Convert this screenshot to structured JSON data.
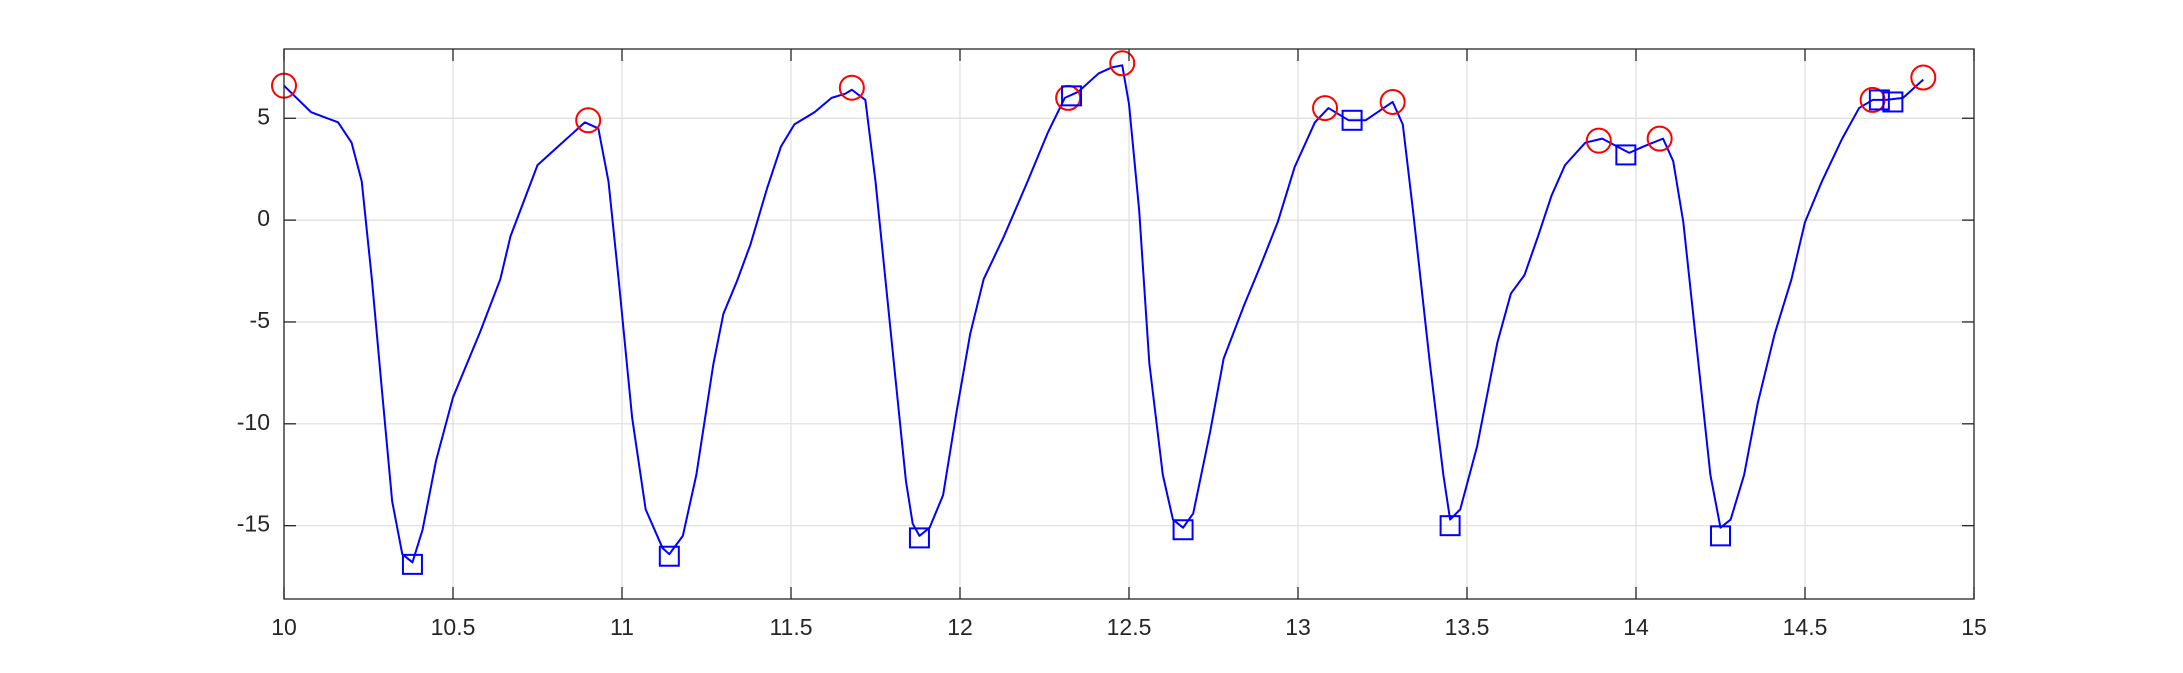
{
  "chart_data": {
    "type": "line",
    "xlim": [
      10,
      15
    ],
    "ylim": [
      -18.6,
      8.4
    ],
    "xticks": [
      10,
      10.5,
      11,
      11.5,
      12,
      12.5,
      13,
      13.5,
      14,
      14.5,
      15
    ],
    "yticks": [
      -15,
      -10,
      -5,
      0,
      5
    ],
    "grid": true,
    "series": [
      {
        "color": "#0000ff",
        "marker": "none",
        "x": [
          10,
          10.08,
          10.16,
          10.2,
          10.23,
          10.26,
          10.29,
          10.32,
          10.35,
          10.38,
          10.41,
          10.45,
          10.5,
          10.58,
          10.64,
          10.67,
          10.75,
          10.81,
          10.85,
          10.89,
          10.93,
          10.96,
          10.99,
          11.03,
          11.07,
          11.12,
          11.14,
          11.18,
          11.22,
          11.27,
          11.3,
          11.34,
          11.38,
          11.43,
          11.47,
          11.51,
          11.57,
          11.62,
          11.66,
          11.68,
          11.72,
          11.75,
          11.8,
          11.84,
          11.86,
          11.88,
          11.91,
          11.95,
          11.99,
          12.03,
          12.07,
          12.13,
          12.2,
          12.26,
          12.31,
          12.35,
          12.41,
          12.45,
          12.48,
          12.5,
          12.53,
          12.56,
          12.6,
          12.63,
          12.66,
          12.69,
          12.74,
          12.78,
          12.84,
          12.89,
          12.94,
          12.99,
          13.05,
          13.09,
          13.15,
          13.2,
          13.28,
          13.31,
          13.34,
          13.39,
          13.43,
          13.45,
          13.48,
          13.53,
          13.59,
          13.63,
          13.67,
          13.71,
          13.75,
          13.79,
          13.85,
          13.9,
          13.98,
          14.02,
          14.08,
          14.11,
          14.14,
          14.18,
          14.22,
          14.25,
          14.28,
          14.32,
          14.36,
          14.41,
          14.46,
          14.5,
          14.55,
          14.61,
          14.66,
          14.7,
          14.74,
          14.79,
          14.85
        ],
        "values": [
          6.6,
          5.3,
          4.8,
          3.8,
          1.9,
          -2.9,
          -8.4,
          -13.8,
          -16.4,
          -16.8,
          -15.2,
          -11.8,
          -8.7,
          -5.5,
          -2.9,
          -0.8,
          2.7,
          3.6,
          4.2,
          4.8,
          4.5,
          1.9,
          -2.9,
          -9.7,
          -14.2,
          -16.1,
          -16.4,
          -15.5,
          -12.5,
          -7.1,
          -4.6,
          -3.0,
          -1.2,
          1.6,
          3.6,
          4.7,
          5.3,
          6.0,
          6.2,
          6.4,
          5.9,
          1.9,
          -6.3,
          -12.8,
          -14.9,
          -15.5,
          -15.1,
          -13.5,
          -9.4,
          -5.6,
          -2.9,
          -0.8,
          1.9,
          4.3,
          6.0,
          6.3,
          7.2,
          7.5,
          7.6,
          5.7,
          0.5,
          -7.0,
          -12.5,
          -14.7,
          -15.1,
          -14.4,
          -10.4,
          -6.8,
          -4.2,
          -2.2,
          -0.1,
          2.6,
          4.8,
          5.5,
          4.9,
          4.9,
          5.8,
          4.7,
          0.5,
          -7.0,
          -12.5,
          -14.7,
          -14.2,
          -11.1,
          -6.0,
          -3.6,
          -2.7,
          -0.8,
          1.2,
          2.7,
          3.8,
          4.0,
          3.3,
          3.6,
          4.0,
          2.9,
          -0.1,
          -6.3,
          -12.5,
          -15.1,
          -14.7,
          -12.5,
          -9.0,
          -5.6,
          -2.9,
          -0.1,
          1.9,
          4.0,
          5.5,
          5.9,
          5.9,
          6.0,
          6.9
        ]
      },
      {
        "color": "#ff0000",
        "marker": "o",
        "x": [
          10.0,
          10.9,
          11.68,
          12.32,
          12.48,
          13.08,
          13.28,
          13.89,
          14.07,
          14.7,
          14.85
        ],
        "values": [
          6.6,
          4.9,
          6.5,
          6.0,
          7.7,
          5.5,
          5.8,
          3.9,
          4.0,
          5.9,
          7.0
        ]
      },
      {
        "color": "#0000ff",
        "marker": "s",
        "x": [
          10.38,
          11.14,
          11.88,
          12.33,
          12.66,
          13.16,
          13.45,
          13.97,
          14.25,
          14.72,
          14.76
        ],
        "values": [
          -16.9,
          -16.5,
          -15.6,
          6.1,
          -15.2,
          4.9,
          -15.0,
          3.2,
          -15.5,
          5.9,
          5.8
        ]
      }
    ]
  }
}
